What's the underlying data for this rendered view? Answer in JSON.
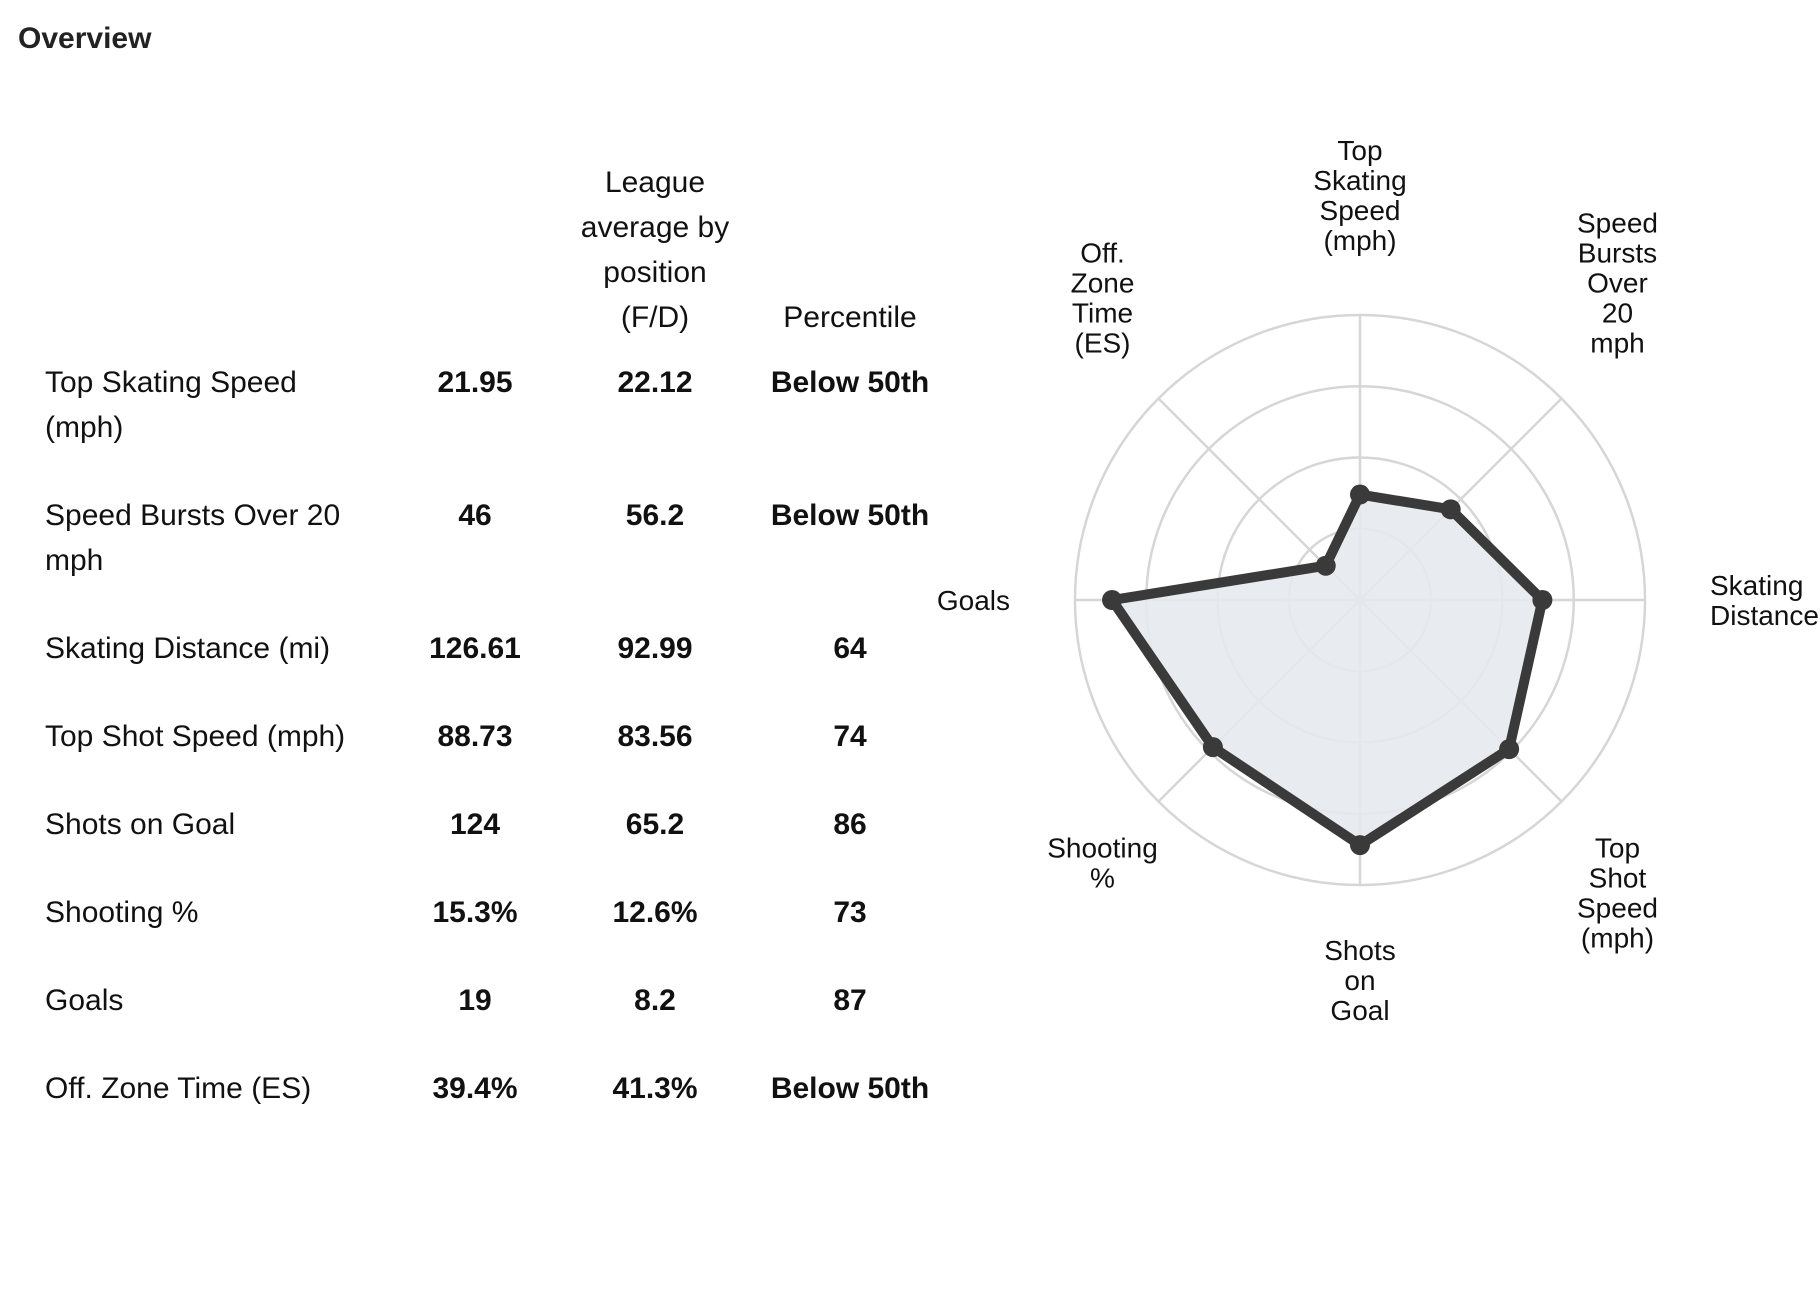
{
  "section": {
    "title": "Overview"
  },
  "table": {
    "headers": {
      "metric": "",
      "player": "",
      "league_avg": "League average by position (F/D)",
      "percentile": "Percentile"
    },
    "rows": [
      {
        "metric": "Top Skating Speed (mph)",
        "player": "21.95",
        "league_avg": "22.12",
        "percentile": "Below 50th"
      },
      {
        "metric": "Speed Bursts Over 20 mph",
        "player": "46",
        "league_avg": "56.2",
        "percentile": "Below 50th"
      },
      {
        "metric": "Skating Distance (mi)",
        "player": "126.61",
        "league_avg": "92.99",
        "percentile": "64"
      },
      {
        "metric": "Top Shot Speed (mph)",
        "player": "88.73",
        "league_avg": "83.56",
        "percentile": "74"
      },
      {
        "metric": "Shots on Goal",
        "player": "124",
        "league_avg": "65.2",
        "percentile": "86"
      },
      {
        "metric": "Shooting %",
        "player": "15.3%",
        "league_avg": "12.6%",
        "percentile": "73"
      },
      {
        "metric": "Goals",
        "player": "19",
        "league_avg": "8.2",
        "percentile": "87"
      },
      {
        "metric": "Off. Zone Time (ES)",
        "player": "39.4%",
        "league_avg": "41.3%",
        "percentile": "Below 50th"
      }
    ]
  },
  "chart_data": {
    "type": "radar",
    "axes": [
      {
        "label": [
          "Top",
          "Skating",
          "Speed",
          "(mph)"
        ],
        "value": 37
      },
      {
        "label": [
          "Speed",
          "Bursts",
          "Over",
          "20",
          "mph"
        ],
        "value": 45
      },
      {
        "label": [
          "Skating",
          "Distance"
        ],
        "value": 64
      },
      {
        "label": [
          "Top",
          "Shot",
          "Speed",
          "(mph)"
        ],
        "value": 74
      },
      {
        "label": [
          "Shots",
          "on",
          "Goal"
        ],
        "value": 86
      },
      {
        "label": [
          "Shooting",
          "%"
        ],
        "value": 73
      },
      {
        "label": [
          "Goals"
        ],
        "value": 87
      },
      {
        "label": [
          "Off.",
          "Zone",
          "Time",
          "(ES)"
        ],
        "value": 17
      }
    ],
    "rings": [
      25,
      50,
      75,
      100
    ],
    "range": [
      0,
      100
    ],
    "fill_color": "#e6eaee",
    "line_color": "#3a3a3a",
    "grid_color": "#d6d6d6"
  }
}
